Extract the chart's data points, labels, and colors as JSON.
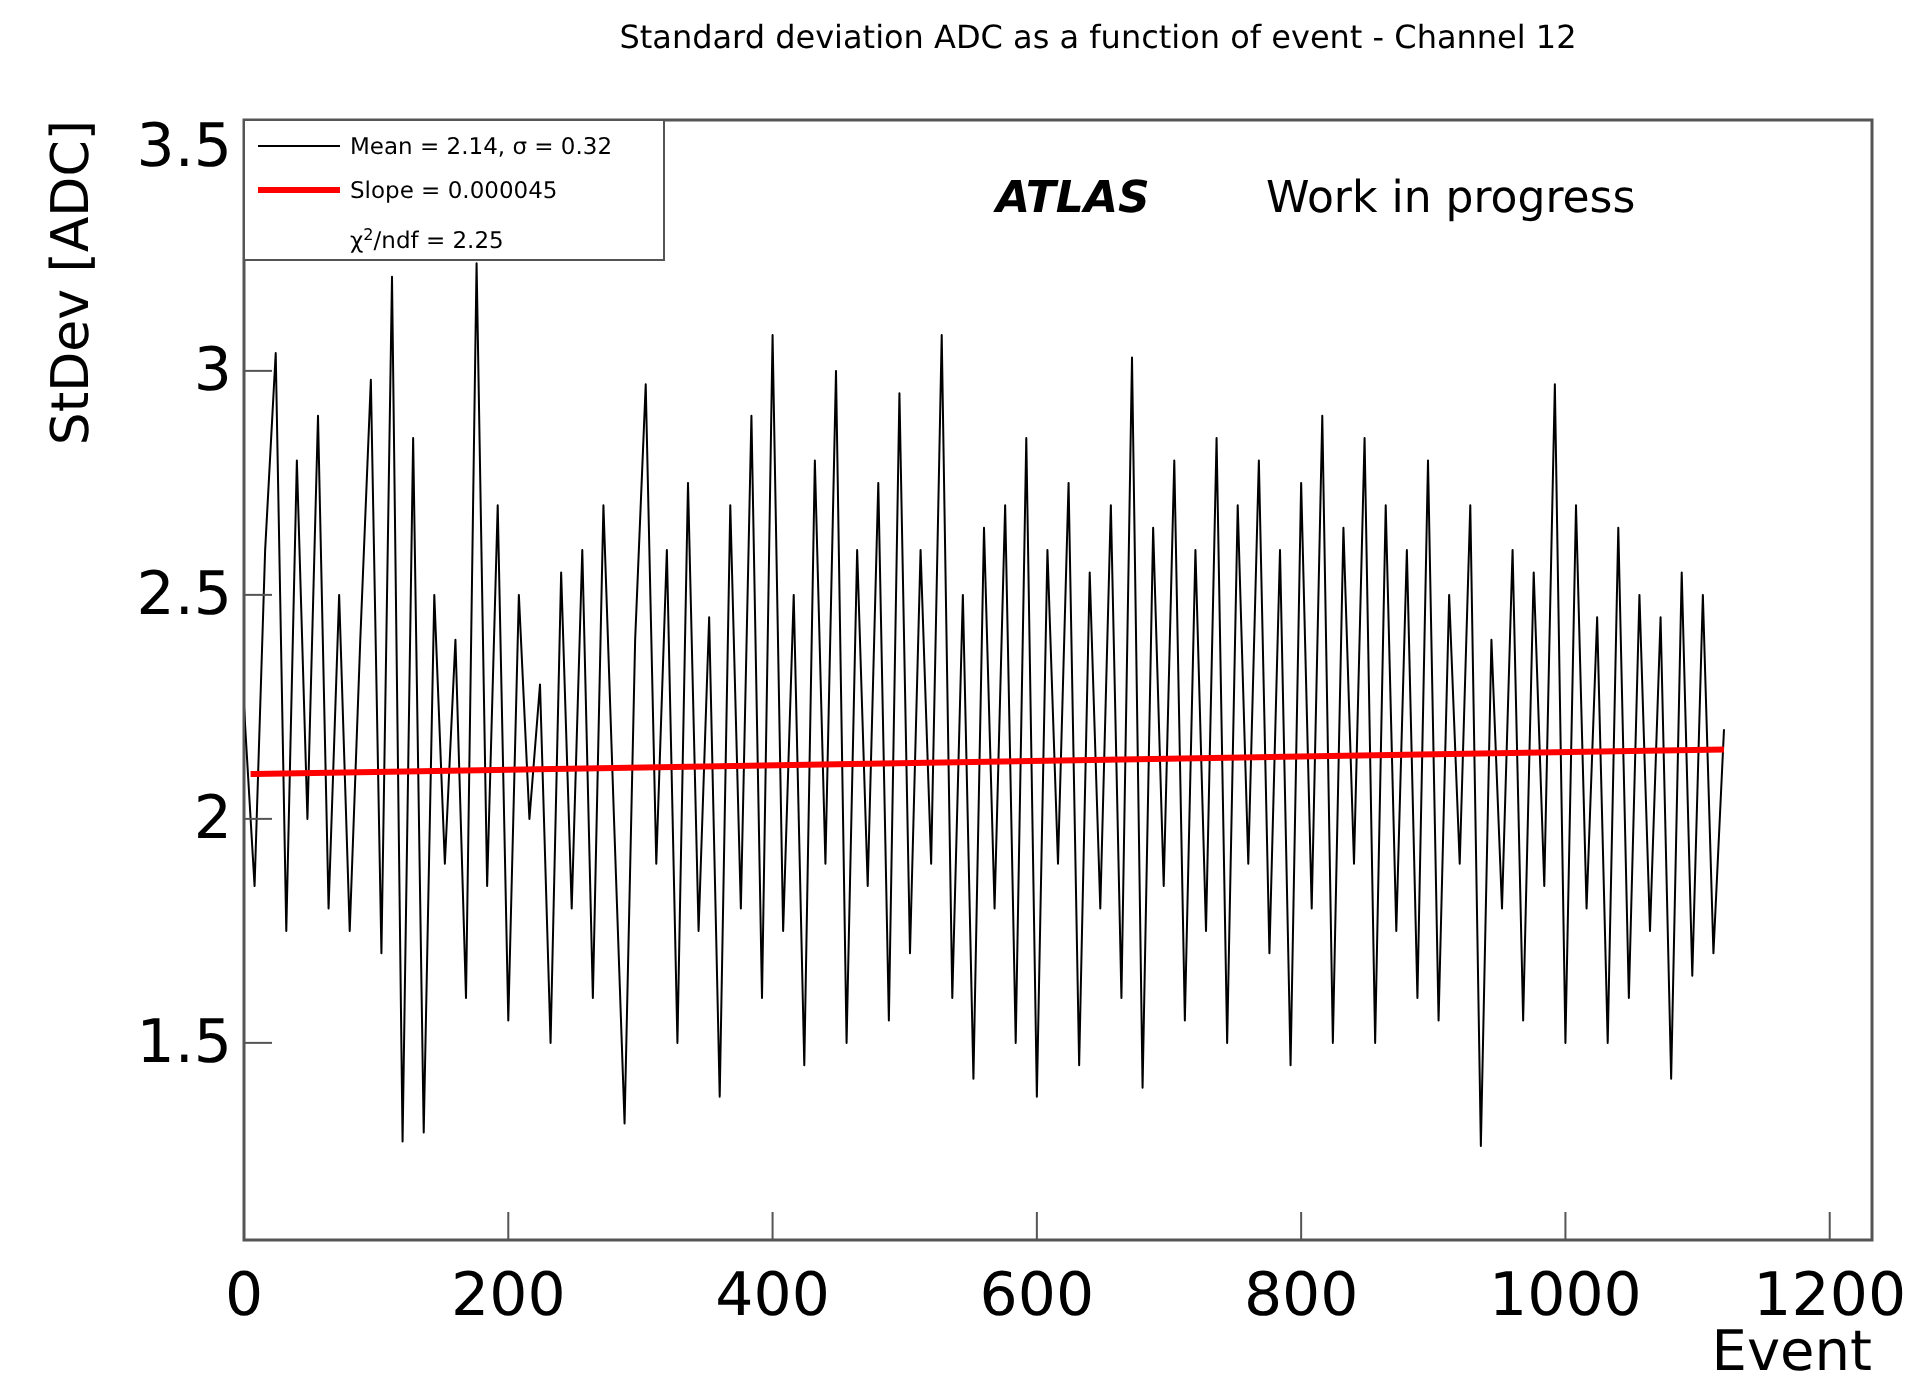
{
  "chart_data": {
    "type": "line",
    "title": "Standard deviation ADC as a function of event - Channel 12",
    "xlabel": "Event",
    "ylabel": "StDev [ADC]",
    "xlim": [
      0,
      1232
    ],
    "xticks": [
      0,
      200,
      400,
      600,
      800,
      1000,
      1200
    ],
    "ylim": [
      1.06,
      3.56
    ],
    "yticks": [
      1.5,
      2,
      2.5,
      3,
      3.5
    ],
    "legend": "top left",
    "annotations": [
      "χ$^{2}$/ndf = 2.25",
      "ATLAS",
      "Work in progress"
    ],
    "series": [
      {
        "name": "Mean = 2.14, σ = 0.32",
        "color": "#000000",
        "x": [
          0,
          8,
          16,
          24,
          32,
          40,
          48,
          56,
          64,
          72,
          80,
          88,
          96,
          104,
          112,
          120,
          128,
          136,
          144,
          152,
          160,
          168,
          176,
          184,
          192,
          200,
          208,
          216,
          224,
          232,
          240,
          248,
          256,
          264,
          272,
          280,
          288,
          296,
          304,
          312,
          320,
          328,
          336,
          344,
          352,
          360,
          368,
          376,
          384,
          392,
          400,
          408,
          416,
          424,
          432,
          440,
          448,
          456,
          464,
          472,
          480,
          488,
          496,
          504,
          512,
          520,
          528,
          536,
          544,
          552,
          560,
          568,
          576,
          584,
          592,
          600,
          608,
          616,
          624,
          632,
          640,
          648,
          656,
          664,
          672,
          680,
          688,
          696,
          704,
          712,
          720,
          728,
          736,
          744,
          752,
          760,
          768,
          776,
          784,
          792,
          800,
          808,
          816,
          824,
          832,
          840,
          848,
          856,
          864,
          872,
          880,
          888,
          896,
          904,
          912,
          920,
          928,
          936,
          944,
          952,
          960,
          968,
          976,
          984,
          992,
          1000,
          1008,
          1016,
          1024,
          1032,
          1040,
          1048,
          1056,
          1064,
          1072,
          1080,
          1088,
          1096,
          1104,
          1112,
          1120
        ],
        "values": [
          2.25,
          1.85,
          2.6,
          3.04,
          1.75,
          2.8,
          2.0,
          2.9,
          1.8,
          2.5,
          1.75,
          2.4,
          2.98,
          1.7,
          3.21,
          1.28,
          2.85,
          1.3,
          2.5,
          1.9,
          2.4,
          1.6,
          3.24,
          1.85,
          2.7,
          1.55,
          2.5,
          2.0,
          2.3,
          1.5,
          2.55,
          1.8,
          2.6,
          1.6,
          2.7,
          2.0,
          1.32,
          2.4,
          2.97,
          1.9,
          2.6,
          1.5,
          2.75,
          1.75,
          2.45,
          1.38,
          2.7,
          1.8,
          2.9,
          1.6,
          3.08,
          1.75,
          2.5,
          1.45,
          2.8,
          1.9,
          3.0,
          1.5,
          2.6,
          1.85,
          2.75,
          1.55,
          2.95,
          1.7,
          2.6,
          1.9,
          3.08,
          1.6,
          2.5,
          1.42,
          2.65,
          1.8,
          2.7,
          1.5,
          2.85,
          1.38,
          2.6,
          1.9,
          2.75,
          1.45,
          2.55,
          1.8,
          2.7,
          1.6,
          3.03,
          1.4,
          2.65,
          1.85,
          2.8,
          1.55,
          2.6,
          1.75,
          2.85,
          1.5,
          2.7,
          1.9,
          2.8,
          1.7,
          2.6,
          1.45,
          2.75,
          1.8,
          2.9,
          1.5,
          2.65,
          1.9,
          2.85,
          1.5,
          2.7,
          1.75,
          2.6,
          1.6,
          2.8,
          1.55,
          2.5,
          1.9,
          2.7,
          1.27,
          2.4,
          1.8,
          2.6,
          1.55,
          2.55,
          1.85,
          2.97,
          1.5,
          2.7,
          1.8,
          2.45,
          1.5,
          2.65,
          1.6,
          2.5,
          1.75,
          2.45,
          1.42,
          2.55,
          1.65,
          2.5,
          1.7,
          2.2
        ]
      },
      {
        "name": "Slope = 0.000045",
        "color": "#ff0000",
        "x": [
          5,
          1120
        ],
        "values": [
          2.1,
          2.155
        ]
      }
    ]
  }
}
